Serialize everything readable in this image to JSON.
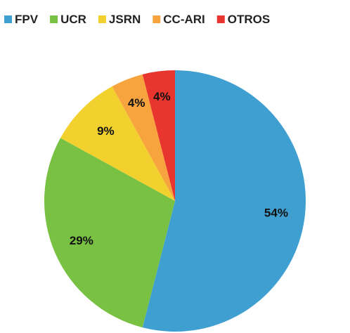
{
  "chart_data": {
    "type": "pie",
    "categories": [
      "FPV",
      "UCR",
      "JSRN",
      "CC-ARI",
      "OTROS"
    ],
    "values": [
      54,
      29,
      9,
      4,
      4
    ],
    "value_labels": [
      "54%",
      "29%",
      "9%",
      "4%",
      "4%"
    ],
    "colors": [
      "#3f9fd1",
      "#79c143",
      "#f2d12f",
      "#f7a43f",
      "#e8352e"
    ],
    "legend": "top"
  }
}
